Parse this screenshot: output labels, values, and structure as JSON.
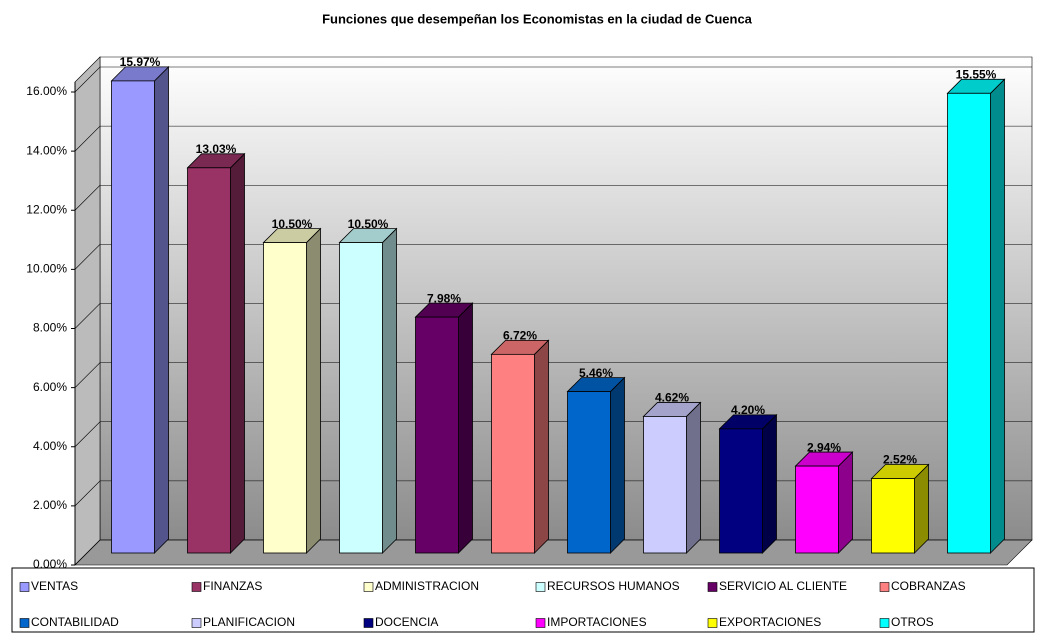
{
  "chart_data": {
    "type": "bar3d",
    "title": "Funciones que desempeñan los Economistas en la ciudad de Cuenca",
    "categories": [
      "VENTAS",
      "FINANZAS",
      "ADMINISTRACION",
      "RECURSOS HUMANOS",
      "SERVICIO AL CLIENTE",
      "COBRANZAS",
      "CONTABILIDAD",
      "PLANIFICACION",
      "DOCENCIA",
      "IMPORTACIONES",
      "EXPORTACIONES",
      "OTROS"
    ],
    "values": [
      15.97,
      13.03,
      10.5,
      10.5,
      7.98,
      6.72,
      5.46,
      4.62,
      4.2,
      2.94,
      2.52,
      15.55
    ],
    "value_labels": [
      "15.97%",
      "13.03%",
      "10.50%",
      "10.50%",
      "7.98%",
      "6.72%",
      "5.46%",
      "4.62%",
      "4.20%",
      "2.94%",
      "2.52%",
      "15.55%"
    ],
    "colors": [
      "#9999ff",
      "#993366",
      "#ffffcc",
      "#ccffff",
      "#660066",
      "#ff8080",
      "#0066cc",
      "#ccccff",
      "#000080",
      "#ff00ff",
      "#ffff00",
      "#00ffff"
    ],
    "ylim": [
      0,
      16
    ],
    "yticks": [
      {
        "value": 0,
        "label": "0.00%"
      },
      {
        "value": 2,
        "label": "2.00%"
      },
      {
        "value": 4,
        "label": "4.00%"
      },
      {
        "value": 6,
        "label": "6.00%"
      },
      {
        "value": 8,
        "label": "8.00%"
      },
      {
        "value": 10,
        "label": "10.00%"
      },
      {
        "value": 12,
        "label": "12.00%"
      },
      {
        "value": 14,
        "label": "14.00%"
      },
      {
        "value": 16,
        "label": "16.00%"
      }
    ],
    "grid": true,
    "legend": "bottom"
  }
}
